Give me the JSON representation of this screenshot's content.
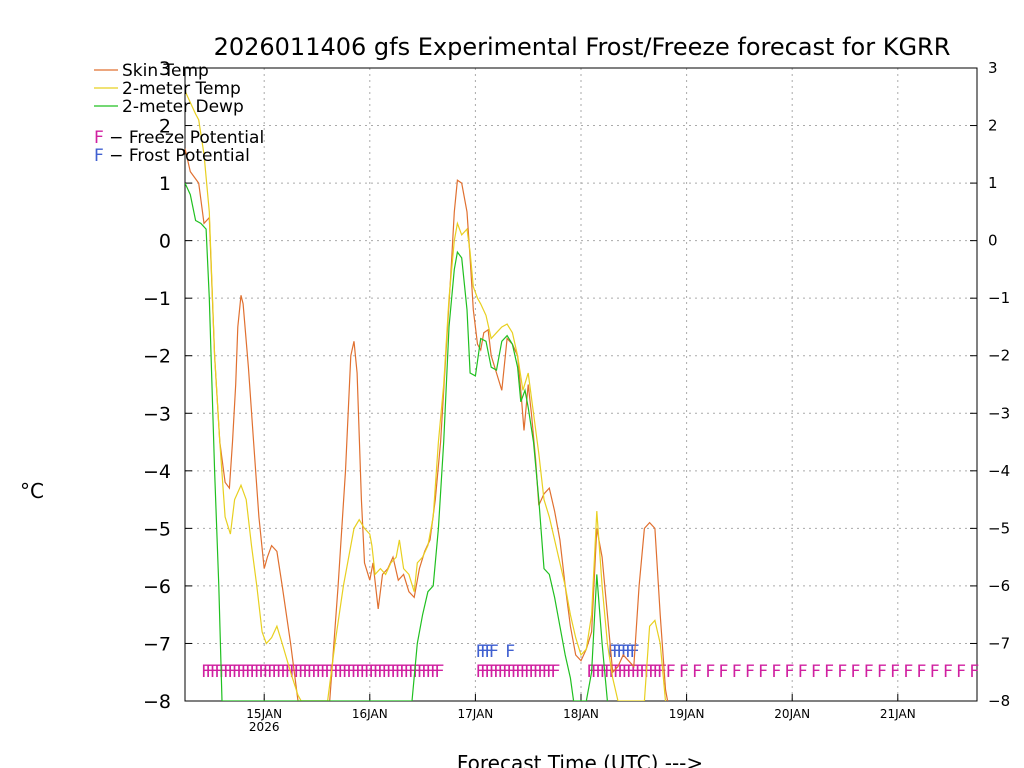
{
  "chart_data": {
    "type": "line",
    "title": "2026011406 gfs Experimental Frost/Freeze forecast for KGRR",
    "xlabel": "Forecast Time (UTC) --->",
    "ylabel": "°C",
    "ylim": [
      -8,
      3
    ],
    "y_ticks": [
      3,
      2,
      1,
      0,
      -1,
      -2,
      -3,
      -4,
      -5,
      -6,
      -7,
      -8
    ],
    "x_range": [
      -0.75,
      6.75
    ],
    "x_ticks": [
      {
        "x": 0,
        "label": "15JAN",
        "sublabel": "2026"
      },
      {
        "x": 1,
        "label": "16JAN"
      },
      {
        "x": 2,
        "label": "17JAN"
      },
      {
        "x": 3,
        "label": "18JAN"
      },
      {
        "x": 4,
        "label": "19JAN"
      },
      {
        "x": 5,
        "label": "20JAN"
      },
      {
        "x": 6,
        "label": "21JAN"
      }
    ],
    "grid": true,
    "legend": {
      "position": "top-left",
      "series_entries": [
        {
          "name": "Skin Temp",
          "color": "#e07030"
        },
        {
          "name": "2-meter Temp",
          "color": "#e8d020"
        },
        {
          "name": "2-meter Dewp",
          "color": "#20c020"
        }
      ],
      "marker_entries": [
        {
          "symbol": "F",
          "text": " - Freeze Potential",
          "color": "#d020a0"
        },
        {
          "symbol": "F",
          "text": " - Frost Potential",
          "color": "#4060d0"
        }
      ]
    },
    "series": [
      {
        "name": "Skin Temp",
        "color": "#e07030",
        "points": [
          [
            -0.75,
            1.6
          ],
          [
            -0.7,
            1.2
          ],
          [
            -0.62,
            1.0
          ],
          [
            -0.57,
            0.3
          ],
          [
            -0.52,
            0.4
          ],
          [
            -0.47,
            -2.0
          ],
          [
            -0.42,
            -3.5
          ],
          [
            -0.37,
            -4.2
          ],
          [
            -0.33,
            -4.3
          ],
          [
            -0.3,
            -3.5
          ],
          [
            -0.27,
            -2.5
          ],
          [
            -0.25,
            -1.5
          ],
          [
            -0.22,
            -0.95
          ],
          [
            -0.2,
            -1.1
          ],
          [
            -0.15,
            -2.2
          ],
          [
            -0.1,
            -3.5
          ],
          [
            -0.05,
            -4.8
          ],
          [
            0.0,
            -5.7
          ],
          [
            0.03,
            -5.5
          ],
          [
            0.07,
            -5.3
          ],
          [
            0.12,
            -5.4
          ],
          [
            0.17,
            -6.0
          ],
          [
            0.25,
            -7.0
          ],
          [
            0.32,
            -8.0
          ],
          [
            0.62,
            -8.0
          ],
          [
            0.7,
            -6.0
          ],
          [
            0.77,
            -4.0
          ],
          [
            0.82,
            -2.0
          ],
          [
            0.85,
            -1.75
          ],
          [
            0.88,
            -2.3
          ],
          [
            0.92,
            -4.5
          ],
          [
            0.95,
            -5.6
          ],
          [
            1.0,
            -5.9
          ],
          [
            1.03,
            -5.6
          ],
          [
            1.08,
            -6.4
          ],
          [
            1.12,
            -5.8
          ],
          [
            1.17,
            -5.7
          ],
          [
            1.22,
            -5.5
          ],
          [
            1.27,
            -5.9
          ],
          [
            1.32,
            -5.8
          ],
          [
            1.37,
            -6.1
          ],
          [
            1.42,
            -6.2
          ],
          [
            1.47,
            -5.7
          ],
          [
            1.52,
            -5.4
          ],
          [
            1.57,
            -5.2
          ],
          [
            1.62,
            -4.5
          ],
          [
            1.67,
            -3.5
          ],
          [
            1.72,
            -2.0
          ],
          [
            1.77,
            -0.5
          ],
          [
            1.8,
            0.5
          ],
          [
            1.83,
            1.05
          ],
          [
            1.87,
            1.0
          ],
          [
            1.92,
            0.5
          ],
          [
            1.95,
            -0.3
          ],
          [
            1.98,
            -1.2
          ],
          [
            2.02,
            -1.8
          ],
          [
            2.05,
            -1.9
          ],
          [
            2.08,
            -1.6
          ],
          [
            2.12,
            -1.55
          ],
          [
            2.15,
            -2.0
          ],
          [
            2.2,
            -2.3
          ],
          [
            2.25,
            -2.6
          ],
          [
            2.3,
            -1.7
          ],
          [
            2.35,
            -1.8
          ],
          [
            2.4,
            -2.0
          ],
          [
            2.43,
            -2.6
          ],
          [
            2.46,
            -3.3
          ],
          [
            2.5,
            -2.5
          ],
          [
            2.53,
            -3.0
          ],
          [
            2.57,
            -3.8
          ],
          [
            2.6,
            -4.6
          ],
          [
            2.65,
            -4.4
          ],
          [
            2.7,
            -4.3
          ],
          [
            2.75,
            -4.7
          ],
          [
            2.8,
            -5.2
          ],
          [
            2.85,
            -6.0
          ],
          [
            2.9,
            -6.7
          ],
          [
            2.95,
            -7.2
          ],
          [
            3.0,
            -7.3
          ],
          [
            3.05,
            -7.1
          ],
          [
            3.1,
            -6.8
          ],
          [
            3.15,
            -5.0
          ],
          [
            3.2,
            -5.5
          ],
          [
            3.25,
            -6.5
          ],
          [
            3.3,
            -7.5
          ],
          [
            3.35,
            -7.4
          ],
          [
            3.4,
            -7.2
          ],
          [
            3.45,
            -7.3
          ],
          [
            3.5,
            -7.4
          ],
          [
            3.55,
            -6.0
          ],
          [
            3.6,
            -5.0
          ],
          [
            3.65,
            -4.9
          ],
          [
            3.7,
            -5.0
          ],
          [
            3.75,
            -6.5
          ],
          [
            3.8,
            -7.8
          ],
          [
            3.82,
            -8.0
          ]
        ]
      },
      {
        "name": "2-meter Temp",
        "color": "#e8d020",
        "points": [
          [
            -0.75,
            2.6
          ],
          [
            -0.7,
            2.4
          ],
          [
            -0.65,
            2.2
          ],
          [
            -0.62,
            2.1
          ],
          [
            -0.57,
            1.5
          ],
          [
            -0.52,
            0.5
          ],
          [
            -0.47,
            -2.0
          ],
          [
            -0.42,
            -3.5
          ],
          [
            -0.37,
            -4.8
          ],
          [
            -0.32,
            -5.1
          ],
          [
            -0.28,
            -4.5
          ],
          [
            -0.22,
            -4.25
          ],
          [
            -0.17,
            -4.5
          ],
          [
            -0.12,
            -5.3
          ],
          [
            -0.07,
            -6.0
          ],
          [
            -0.02,
            -6.8
          ],
          [
            0.02,
            -7.0
          ],
          [
            0.07,
            -6.9
          ],
          [
            0.12,
            -6.7
          ],
          [
            0.17,
            -7.0
          ],
          [
            0.25,
            -7.5
          ],
          [
            0.32,
            -7.9
          ],
          [
            0.35,
            -8.0
          ],
          [
            0.6,
            -8.0
          ],
          [
            0.67,
            -7.0
          ],
          [
            0.75,
            -6.0
          ],
          [
            0.8,
            -5.5
          ],
          [
            0.85,
            -5.0
          ],
          [
            0.9,
            -4.85
          ],
          [
            0.95,
            -5.0
          ],
          [
            1.0,
            -5.1
          ],
          [
            1.02,
            -5.3
          ],
          [
            1.05,
            -5.8
          ],
          [
            1.1,
            -5.7
          ],
          [
            1.15,
            -5.8
          ],
          [
            1.2,
            -5.6
          ],
          [
            1.25,
            -5.5
          ],
          [
            1.28,
            -5.2
          ],
          [
            1.32,
            -5.7
          ],
          [
            1.37,
            -5.8
          ],
          [
            1.42,
            -6.1
          ],
          [
            1.45,
            -5.6
          ],
          [
            1.5,
            -5.5
          ],
          [
            1.55,
            -5.3
          ],
          [
            1.6,
            -4.8
          ],
          [
            1.65,
            -3.5
          ],
          [
            1.7,
            -2.5
          ],
          [
            1.75,
            -1.0
          ],
          [
            1.8,
            0.0
          ],
          [
            1.83,
            0.3
          ],
          [
            1.87,
            0.1
          ],
          [
            1.92,
            0.2
          ],
          [
            1.95,
            -0.2
          ],
          [
            1.98,
            -0.8
          ],
          [
            2.02,
            -1.0
          ],
          [
            2.05,
            -1.1
          ],
          [
            2.1,
            -1.3
          ],
          [
            2.15,
            -1.7
          ],
          [
            2.2,
            -1.6
          ],
          [
            2.25,
            -1.5
          ],
          [
            2.3,
            -1.45
          ],
          [
            2.35,
            -1.6
          ],
          [
            2.4,
            -2.0
          ],
          [
            2.45,
            -2.6
          ],
          [
            2.5,
            -2.3
          ],
          [
            2.55,
            -3.0
          ],
          [
            2.6,
            -3.7
          ],
          [
            2.65,
            -4.5
          ],
          [
            2.7,
            -4.8
          ],
          [
            2.75,
            -5.2
          ],
          [
            2.8,
            -5.6
          ],
          [
            2.85,
            -6.0
          ],
          [
            2.9,
            -6.5
          ],
          [
            2.95,
            -6.9
          ],
          [
            3.0,
            -7.2
          ],
          [
            3.05,
            -7.1
          ],
          [
            3.1,
            -6.5
          ],
          [
            3.15,
            -4.7
          ],
          [
            3.2,
            -6.0
          ],
          [
            3.25,
            -7.0
          ],
          [
            3.3,
            -7.6
          ],
          [
            3.35,
            -8.0
          ],
          [
            3.6,
            -8.0
          ],
          [
            3.65,
            -6.7
          ],
          [
            3.7,
            -6.6
          ],
          [
            3.75,
            -7.0
          ],
          [
            3.8,
            -8.0
          ]
        ]
      },
      {
        "name": "2-meter Dewp",
        "color": "#20c020",
        "points": [
          [
            -0.75,
            1.0
          ],
          [
            -0.7,
            0.8
          ],
          [
            -0.65,
            0.35
          ],
          [
            -0.6,
            0.3
          ],
          [
            -0.55,
            0.2
          ],
          [
            -0.52,
            -1.0
          ],
          [
            -0.47,
            -4.0
          ],
          [
            -0.43,
            -6.0
          ],
          [
            -0.4,
            -8.0
          ],
          [
            0.0,
            -8.0
          ],
          [
            1.4,
            -8.0
          ],
          [
            1.45,
            -7.0
          ],
          [
            1.5,
            -6.5
          ],
          [
            1.55,
            -6.1
          ],
          [
            1.6,
            -6.0
          ],
          [
            1.65,
            -5.0
          ],
          [
            1.7,
            -3.5
          ],
          [
            1.75,
            -1.5
          ],
          [
            1.8,
            -0.5
          ],
          [
            1.83,
            -0.2
          ],
          [
            1.87,
            -0.3
          ],
          [
            1.92,
            -1.2
          ],
          [
            1.95,
            -2.3
          ],
          [
            2.0,
            -2.35
          ],
          [
            2.05,
            -1.7
          ],
          [
            2.1,
            -1.75
          ],
          [
            2.15,
            -2.2
          ],
          [
            2.2,
            -2.25
          ],
          [
            2.25,
            -1.75
          ],
          [
            2.3,
            -1.65
          ],
          [
            2.35,
            -1.8
          ],
          [
            2.4,
            -2.2
          ],
          [
            2.43,
            -2.8
          ],
          [
            2.47,
            -2.6
          ],
          [
            2.5,
            -2.9
          ],
          [
            2.55,
            -3.5
          ],
          [
            2.6,
            -4.5
          ],
          [
            2.65,
            -5.7
          ],
          [
            2.7,
            -5.8
          ],
          [
            2.75,
            -6.2
          ],
          [
            2.8,
            -6.7
          ],
          [
            2.85,
            -7.2
          ],
          [
            2.9,
            -7.6
          ],
          [
            2.93,
            -8.0
          ],
          [
            3.05,
            -8.0
          ],
          [
            3.1,
            -7.5
          ],
          [
            3.15,
            -5.8
          ],
          [
            3.2,
            -7.0
          ],
          [
            3.25,
            -8.0
          ]
        ]
      }
    ],
    "potential_markers": {
      "symbol": "F",
      "freeze_color": "#d020a0",
      "frost_color": "#4060d0",
      "freeze_y": -7.45,
      "freeze_step": 0.0417,
      "freeze_ranges": [
        [
          -0.55,
          1.7
        ],
        [
          2.05,
          2.8
        ],
        [
          3.1,
          3.8
        ]
      ],
      "freeze_sparse_range": [
        3.85,
        6.75
      ],
      "freeze_sparse_step": 0.125,
      "frost_y": -7.1,
      "frost_step": 0.0417,
      "frost_ranges": [
        [
          2.05,
          2.2
        ],
        [
          2.33,
          2.34
        ],
        [
          3.3,
          3.55
        ]
      ]
    }
  }
}
